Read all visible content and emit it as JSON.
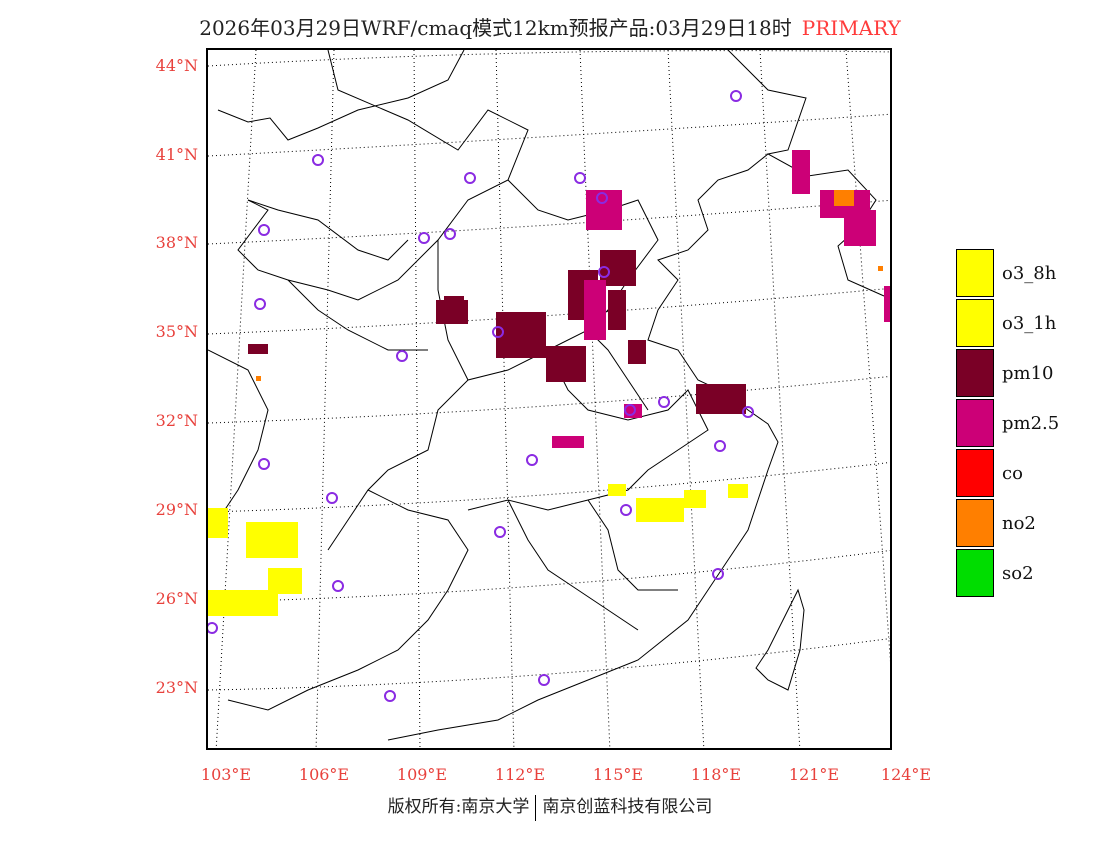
{
  "title": {
    "main": "2026年03月29日WRF/cmaq模式12km预报产品:03月29日18时",
    "product": "PRIMARY"
  },
  "latitude_labels": [
    "44°N",
    "41°N",
    "38°N",
    "35°N",
    "32°N",
    "29°N",
    "26°N",
    "23°N"
  ],
  "longitude_labels": [
    "103°E",
    "106°E",
    "109°E",
    "112°E",
    "115°E",
    "118°E",
    "121°E",
    "124°E"
  ],
  "legend": [
    {
      "label": "o3_8h",
      "color": "#ffff00"
    },
    {
      "label": "o3_1h",
      "color": "#ffff00"
    },
    {
      "label": "pm10",
      "color": "#7a0026"
    },
    {
      "label": "pm2.5",
      "color": "#cc0077"
    },
    {
      "label": "co",
      "color": "#ff0000"
    },
    {
      "label": "no2",
      "color": "#ff7f00"
    },
    {
      "label": "so2",
      "color": "#00dd00"
    }
  ],
  "copyright": {
    "left": "版权所有:南京大学",
    "right": "南京创蓝科技有限公司"
  }
}
